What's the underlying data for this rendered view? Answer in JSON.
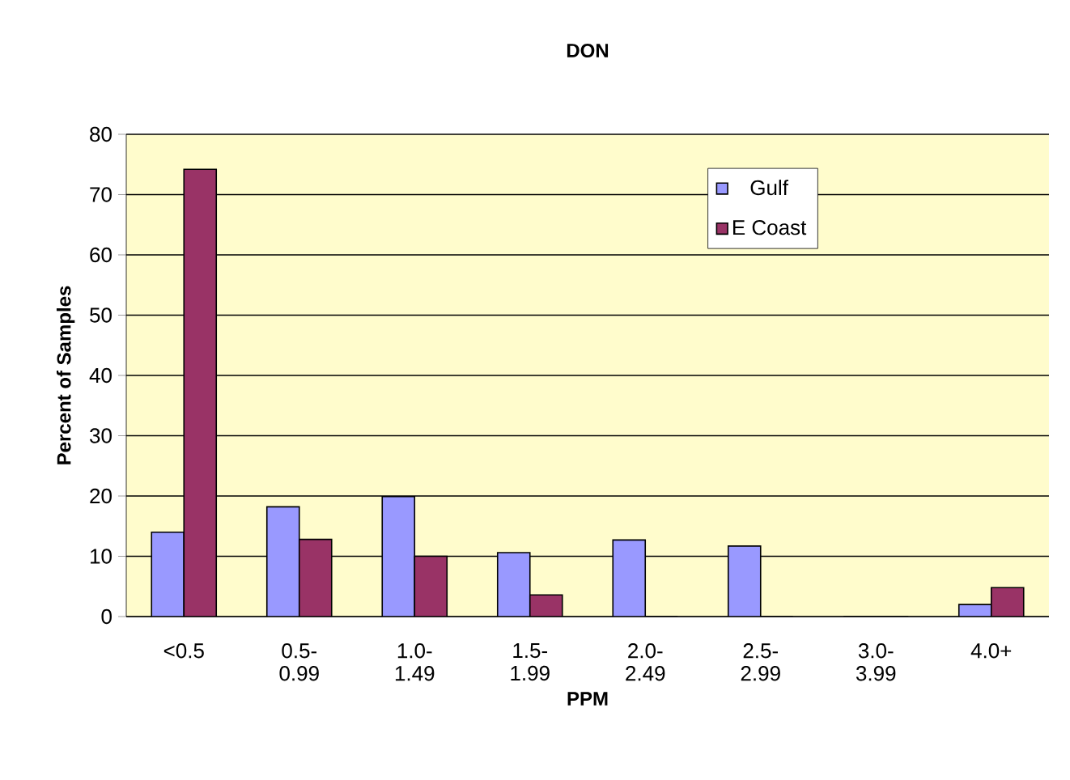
{
  "chart_data": {
    "type": "bar",
    "title": "DON",
    "xlabel": "PPM",
    "ylabel": "Percent of Samples",
    "categories": [
      "<0.5",
      "0.5- 0.99",
      "1.0- 1.49",
      "1.5- 1.99",
      "2.0- 2.49",
      "2.5- 2.99",
      "3.0- 3.99",
      "4.0+"
    ],
    "series": [
      {
        "name": "Gulf",
        "color": "#9999ff",
        "values": [
          14,
          18.2,
          19.9,
          10.6,
          12.7,
          11.7,
          0,
          2
        ]
      },
      {
        "name": "E Coast",
        "color": "#993366",
        "values": [
          74.2,
          12.8,
          10,
          3.6,
          0,
          0,
          0,
          4.8
        ]
      }
    ],
    "ylim": [
      0,
      80
    ],
    "yticks": [
      0,
      10,
      20,
      30,
      40,
      50,
      60,
      70,
      80
    ],
    "grid": "y",
    "legend": "top right"
  }
}
